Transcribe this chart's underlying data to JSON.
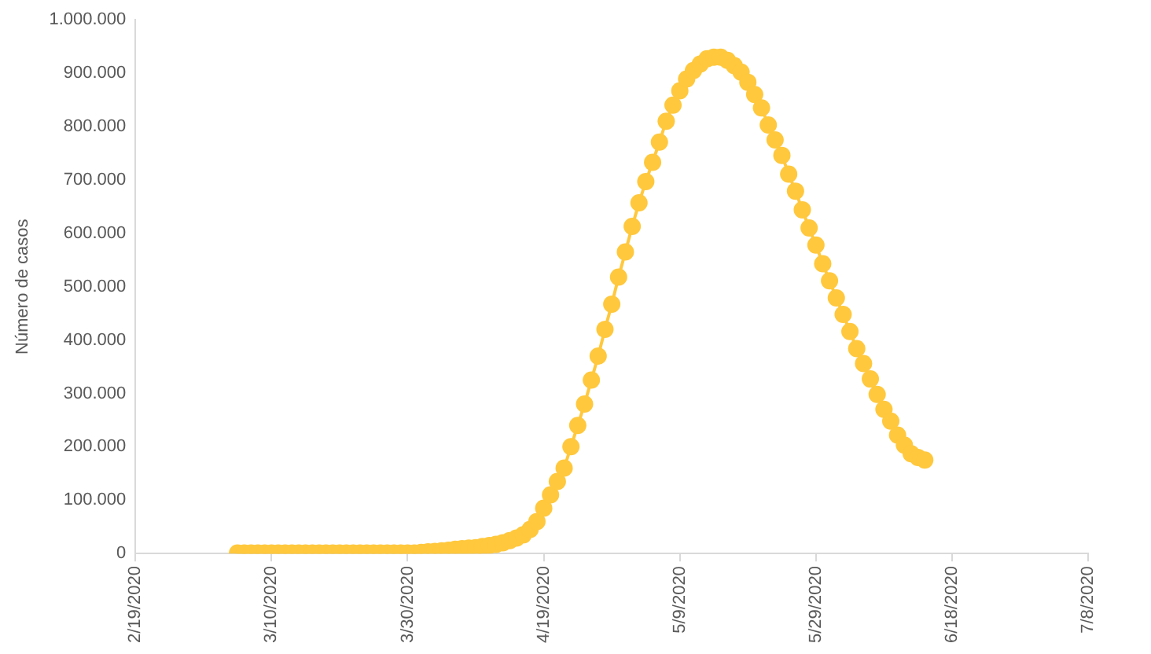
{
  "chart_data": {
    "type": "line",
    "ylabel": "Número de casos",
    "marker": "circle",
    "line_style": "solid",
    "grid": false,
    "legend": false,
    "xlim": [
      "2020-02-19",
      "2020-07-08"
    ],
    "xticks": [
      {
        "value": "2020-02-19",
        "label": "2/19/2020"
      },
      {
        "value": "2020-03-10",
        "label": "3/10/2020"
      },
      {
        "value": "2020-03-30",
        "label": "3/30/2020"
      },
      {
        "value": "2020-04-19",
        "label": "4/19/2020"
      },
      {
        "value": "2020-05-09",
        "label": "5/9/2020"
      },
      {
        "value": "2020-05-29",
        "label": "5/29/2020"
      },
      {
        "value": "2020-06-18",
        "label": "6/18/2020"
      },
      {
        "value": "2020-07-08",
        "label": "7/8/2020"
      }
    ],
    "ylim": [
      0,
      1000000
    ],
    "yticks": [
      {
        "value": 0,
        "label": "0"
      },
      {
        "value": 100000,
        "label": "100.000"
      },
      {
        "value": 200000,
        "label": "200.000"
      },
      {
        "value": 300000,
        "label": "300.000"
      },
      {
        "value": 400000,
        "label": "400.000"
      },
      {
        "value": 500000,
        "label": "500.000"
      },
      {
        "value": 600000,
        "label": "600.000"
      },
      {
        "value": 700000,
        "label": "700.000"
      },
      {
        "value": 800000,
        "label": "800.000"
      },
      {
        "value": 900000,
        "label": "900.000"
      },
      {
        "value": 1000000,
        "label": "1.000.000"
      }
    ],
    "x": [
      "2020-03-05",
      "2020-03-06",
      "2020-03-07",
      "2020-03-08",
      "2020-03-09",
      "2020-03-10",
      "2020-03-11",
      "2020-03-12",
      "2020-03-13",
      "2020-03-14",
      "2020-03-15",
      "2020-03-16",
      "2020-03-17",
      "2020-03-18",
      "2020-03-19",
      "2020-03-20",
      "2020-03-21",
      "2020-03-22",
      "2020-03-23",
      "2020-03-24",
      "2020-03-25",
      "2020-03-26",
      "2020-03-27",
      "2020-03-28",
      "2020-03-29",
      "2020-03-30",
      "2020-03-31",
      "2020-04-01",
      "2020-04-02",
      "2020-04-03",
      "2020-04-04",
      "2020-04-05",
      "2020-04-06",
      "2020-04-07",
      "2020-04-08",
      "2020-04-09",
      "2020-04-10",
      "2020-04-11",
      "2020-04-12",
      "2020-04-13",
      "2020-04-14",
      "2020-04-15",
      "2020-04-16",
      "2020-04-17",
      "2020-04-18",
      "2020-04-19",
      "2020-04-20",
      "2020-04-21",
      "2020-04-22",
      "2020-04-23",
      "2020-04-24",
      "2020-04-25",
      "2020-04-26",
      "2020-04-27",
      "2020-04-28",
      "2020-04-29",
      "2020-04-30",
      "2020-05-01",
      "2020-05-02",
      "2020-05-03",
      "2020-05-04",
      "2020-05-05",
      "2020-05-06",
      "2020-05-07",
      "2020-05-08",
      "2020-05-09",
      "2020-05-10",
      "2020-05-11",
      "2020-05-12",
      "2020-05-13",
      "2020-05-14",
      "2020-05-15",
      "2020-05-16",
      "2020-05-17",
      "2020-05-18",
      "2020-05-19",
      "2020-05-20",
      "2020-05-21",
      "2020-05-22",
      "2020-05-23",
      "2020-05-24",
      "2020-05-25",
      "2020-05-26",
      "2020-05-27",
      "2020-05-28",
      "2020-05-29",
      "2020-05-30",
      "2020-05-31",
      "2020-06-01",
      "2020-06-02",
      "2020-06-03",
      "2020-06-04",
      "2020-06-05",
      "2020-06-06",
      "2020-06-07",
      "2020-06-08",
      "2020-06-09",
      "2020-06-10",
      "2020-06-11",
      "2020-06-12",
      "2020-06-13",
      "2020-06-14"
    ],
    "series": [
      {
        "color": "#ffc83d",
        "values": [
          1000,
          1000,
          1000,
          1000,
          1000,
          1000,
          1000,
          1000,
          1000,
          1000,
          1000,
          1000,
          1000,
          1000,
          1000,
          1000,
          1000,
          1000,
          1000,
          1000,
          1000,
          1000,
          1000,
          1000,
          1000,
          1000,
          1000,
          2000,
          3000,
          4000,
          5000,
          6000,
          8000,
          9000,
          10000,
          11000,
          13000,
          15000,
          17000,
          20000,
          24000,
          29000,
          35000,
          45000,
          60000,
          85000,
          110000,
          135000,
          160000,
          200000,
          240000,
          280000,
          325000,
          370000,
          420000,
          467000,
          518000,
          565000,
          613000,
          657000,
          697000,
          733000,
          771000,
          810000,
          840000,
          867000,
          889000,
          905000,
          917000,
          927000,
          930000,
          930000,
          924000,
          914000,
          902000,
          883000,
          860000,
          835000,
          803000,
          775000,
          746000,
          711000,
          679000,
          644000,
          610000,
          578000,
          543000,
          511000,
          479000,
          448000,
          416000,
          384000,
          356000,
          327000,
          298000,
          270000,
          248000,
          222000,
          203000,
          187000,
          180000,
          175000
        ]
      }
    ]
  }
}
